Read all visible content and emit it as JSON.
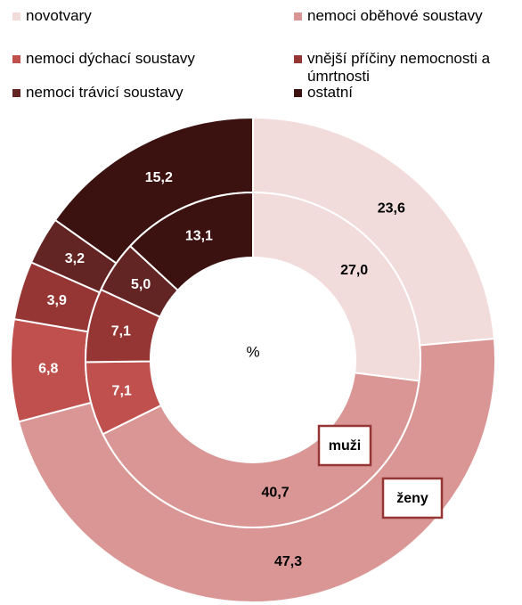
{
  "chart_data": {
    "type": "donut",
    "categories": [
      "novotvary",
      "nemoci oběhové soustavy",
      "nemoci dýchací soustavy",
      "vnější příčiny nemocnosti a úmrtnosti",
      "nemoci trávicí soustavy",
      "ostatní"
    ],
    "colors": [
      "#f2dcdb",
      "#d99694",
      "#c0504d",
      "#963634",
      "#632523",
      "#3b1210"
    ],
    "center_label": "%",
    "series": [
      {
        "name": "ženy",
        "values": [
          23.6,
          47.3,
          6.8,
          3.9,
          3.2,
          15.2
        ],
        "value_labels": [
          "23,6",
          "47,3",
          "6,8",
          "3,9",
          "3,2",
          "15,2"
        ]
      },
      {
        "name": "muži",
        "values": [
          27.0,
          40.7,
          7.1,
          7.1,
          5.0,
          13.1
        ],
        "value_labels": [
          "27,0",
          "40,7",
          "7,1",
          "7,1",
          "5,0",
          "13,1"
        ]
      }
    ]
  }
}
